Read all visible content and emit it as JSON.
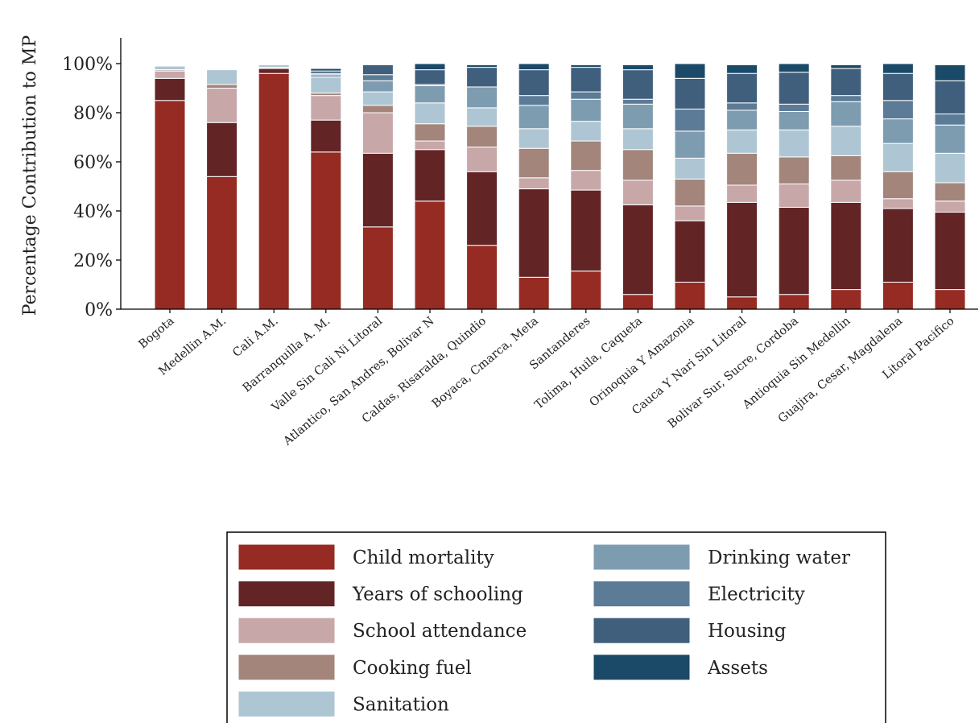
{
  "chart_data": {
    "type": "bar",
    "stacked": true,
    "ylabel": "Percentage Contribution to MP",
    "ylim": [
      0,
      100
    ],
    "ytick_labels": [
      "0%",
      "20%",
      "40%",
      "60%",
      "80%",
      "100%"
    ],
    "legend_position": "bottom",
    "legend_columns": 2,
    "grid": false,
    "categories": [
      "Bogota",
      "Medellin A.M.",
      "Cali A.M.",
      "Barranquilla A. M.",
      "Valle Sin Cali Ni Litoral",
      "Atlantico, San Andres, Bolivar N",
      "Caldas, Risaralda, Quindio",
      "Boyaca, Cmarca, Meta",
      "Santanderes",
      "Tolima, Huila, Caqueta",
      "Orinoquia Y Amazonia",
      "Cauca Y Nari Sin Litoral",
      "Bolivar Sur, Sucre, Cordoba",
      "Antioquia Sin Medellin",
      "Guajira, Cesar, Magdalena",
      "Litoral Pacifico"
    ],
    "series": [
      {
        "name": "Child mortality",
        "color": "#952b22",
        "values": [
          85,
          54,
          96,
          64,
          33.5,
          44,
          26,
          13,
          15.5,
          6,
          11,
          5,
          6,
          8,
          11,
          8
        ]
      },
      {
        "name": "Years of schooling",
        "color": "#632425",
        "values": [
          9,
          22,
          2,
          13,
          30,
          21,
          30,
          36,
          33,
          36.5,
          25,
          38.5,
          35.5,
          35.5,
          30,
          31.5
        ]
      },
      {
        "name": "School attendance",
        "color": "#c8a7a9",
        "values": [
          3,
          14,
          0.5,
          10,
          16.5,
          3.5,
          10,
          4.5,
          8,
          10,
          6,
          7,
          9.5,
          9,
          4,
          4.5
        ]
      },
      {
        "name": "Cooking fuel",
        "color": "#a3857b",
        "values": [
          0.5,
          1.5,
          0,
          1,
          3,
          7,
          8.5,
          12,
          12,
          12.5,
          11,
          13,
          11,
          10,
          11,
          7.5
        ]
      },
      {
        "name": "Sanitation",
        "color": "#aec6d3",
        "values": [
          1.5,
          6,
          1,
          6.5,
          5.5,
          8.5,
          7.5,
          8,
          8,
          8.5,
          8.5,
          9.5,
          11,
          12,
          11.5,
          12
        ]
      },
      {
        "name": "Drinking water",
        "color": "#7e9cb0",
        "values": [
          0,
          0,
          0,
          1,
          4.5,
          7,
          8.5,
          9.5,
          9,
          10,
          11,
          8,
          7.5,
          10,
          10,
          11.5
        ]
      },
      {
        "name": "Electricity",
        "color": "#5c7b96",
        "values": [
          0,
          0,
          0,
          0.5,
          2.5,
          0.5,
          0,
          4,
          3,
          2,
          9,
          3,
          3,
          2.5,
          7.5,
          4.5
        ]
      },
      {
        "name": "Housing",
        "color": "#3f5f7c",
        "values": [
          0,
          0,
          0,
          1,
          4,
          6,
          8,
          10.5,
          10,
          12,
          12.5,
          12,
          13,
          11,
          11,
          13.5
        ]
      },
      {
        "name": "Assets",
        "color": "#1b4a68",
        "values": [
          0,
          0,
          0,
          1,
          0,
          2.5,
          1,
          2.5,
          1,
          2,
          6,
          3.5,
          3.5,
          1.5,
          4,
          6.5
        ]
      }
    ]
  }
}
